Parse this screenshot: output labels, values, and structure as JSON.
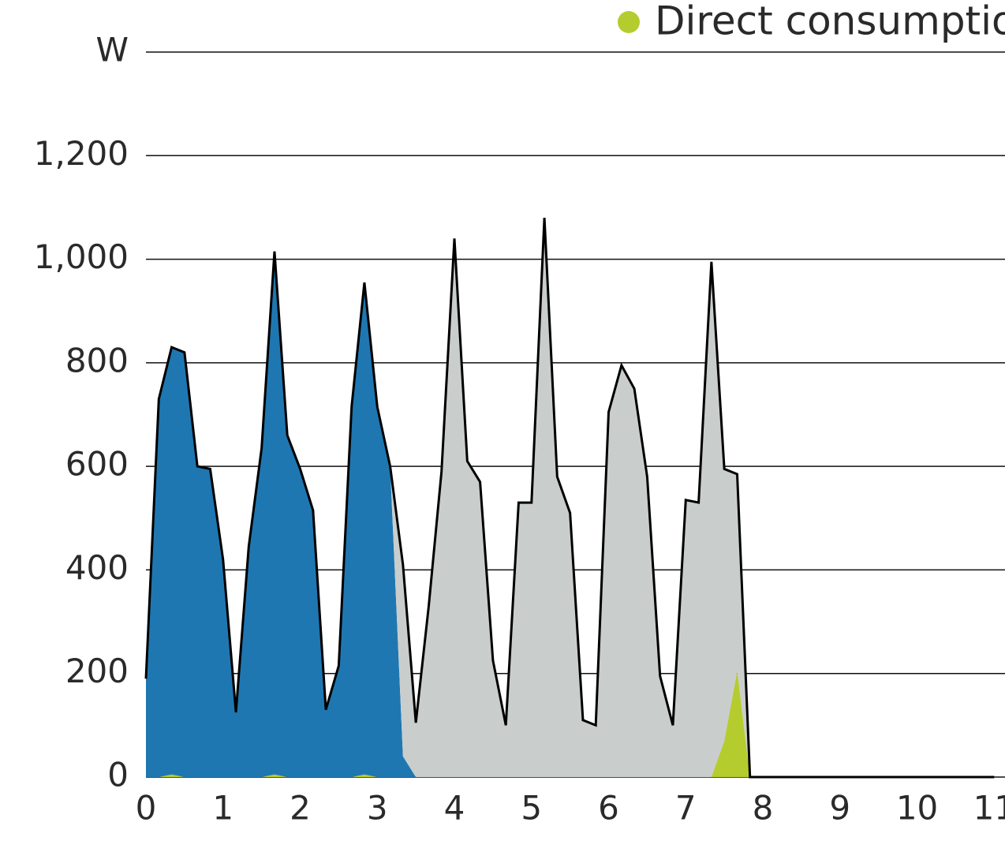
{
  "chart_data": {
    "type": "stacked-area",
    "y_label": "W",
    "x": [
      0,
      0.167,
      0.333,
      0.5,
      0.667,
      0.833,
      1,
      1.167,
      1.333,
      1.5,
      1.667,
      1.833,
      2,
      2.167,
      2.333,
      2.5,
      2.667,
      2.833,
      3,
      3.167,
      3.333,
      3.5,
      3.667,
      3.833,
      4,
      4.167,
      4.333,
      4.5,
      4.667,
      4.833,
      5,
      5.167,
      5.333,
      5.5,
      5.667,
      5.833,
      6,
      6.167,
      6.333,
      6.5,
      6.667,
      6.833,
      7,
      7.167,
      7.333,
      7.5,
      7.667,
      7.833,
      8,
      8.167,
      8.333,
      8.5,
      8.667,
      8.833,
      9,
      9.167,
      9.333,
      9.5,
      9.667,
      9.833,
      10,
      10.167,
      10.333,
      10.5,
      10.667,
      10.833,
      11
    ],
    "series": [
      {
        "name": "Direct consumption",
        "color": "#b5cc2e",
        "values": [
          0,
          0,
          5,
          0,
          0,
          0,
          0,
          0,
          0,
          0,
          5,
          0,
          0,
          0,
          0,
          0,
          0,
          5,
          0,
          0,
          0,
          0,
          0,
          0,
          0,
          0,
          0,
          0,
          0,
          0,
          0,
          0,
          0,
          0,
          0,
          0,
          0,
          0,
          0,
          0,
          0,
          0,
          0,
          0,
          0,
          70,
          205,
          0,
          0,
          0,
          0,
          0,
          0,
          0,
          0,
          0,
          0,
          0,
          0,
          0,
          0,
          0,
          0,
          0,
          0,
          0,
          0
        ]
      },
      {
        "color": "#1f77b1",
        "values": [
          190,
          730,
          825,
          820,
          600,
          595,
          420,
          125,
          445,
          635,
          1010,
          660,
          595,
          515,
          130,
          215,
          715,
          950,
          715,
          600,
          40,
          0,
          0,
          0,
          0,
          0,
          0,
          0,
          0,
          0,
          0,
          0,
          0,
          0,
          0,
          0,
          0,
          0,
          0,
          0,
          0,
          0,
          0,
          0,
          0,
          0,
          0,
          0,
          0,
          0,
          0,
          0,
          0,
          0,
          0,
          0,
          0,
          0,
          0,
          0,
          0,
          0,
          0,
          0,
          0,
          0,
          0
        ]
      },
      {
        "color": "#c9cdcc",
        "values": [
          0,
          0,
          0,
          0,
          0,
          0,
          0,
          0,
          0,
          0,
          0,
          0,
          0,
          0,
          0,
          0,
          0,
          0,
          0,
          0,
          370,
          105,
          330,
          590,
          1040,
          610,
          570,
          225,
          100,
          530,
          530,
          1080,
          580,
          510,
          110,
          100,
          705,
          795,
          750,
          580,
          195,
          100,
          535,
          530,
          995,
          525,
          380,
          0,
          0,
          0,
          0,
          0,
          0,
          0,
          0,
          0,
          0,
          0,
          0,
          0,
          0,
          0,
          0,
          0,
          0,
          0,
          0
        ]
      }
    ],
    "total": {
      "color": "#000000",
      "values": [
        190,
        730,
        830,
        820,
        600,
        595,
        420,
        125,
        445,
        635,
        1015,
        660,
        595,
        515,
        130,
        215,
        715,
        955,
        715,
        600,
        410,
        105,
        330,
        590,
        1040,
        610,
        570,
        225,
        100,
        530,
        530,
        1080,
        580,
        510,
        110,
        100,
        705,
        795,
        750,
        580,
        195,
        100,
        535,
        530,
        995,
        595,
        585,
        0,
        0,
        0,
        0,
        0,
        0,
        0,
        0,
        0,
        0,
        0,
        0,
        0,
        0,
        0,
        0,
        0,
        0,
        0,
        0
      ]
    },
    "xlim": [
      0,
      11.14
    ],
    "ylim": [
      0,
      1400
    ],
    "xticks": [
      0,
      1,
      2,
      3,
      4,
      5,
      6,
      7,
      8,
      9,
      10,
      11
    ],
    "yticks": [
      0,
      200,
      400,
      600,
      800,
      {
        "value": 1000,
        "label": "1,000"
      },
      {
        "value": 1200,
        "label": "1,200"
      }
    ],
    "grid": true
  }
}
